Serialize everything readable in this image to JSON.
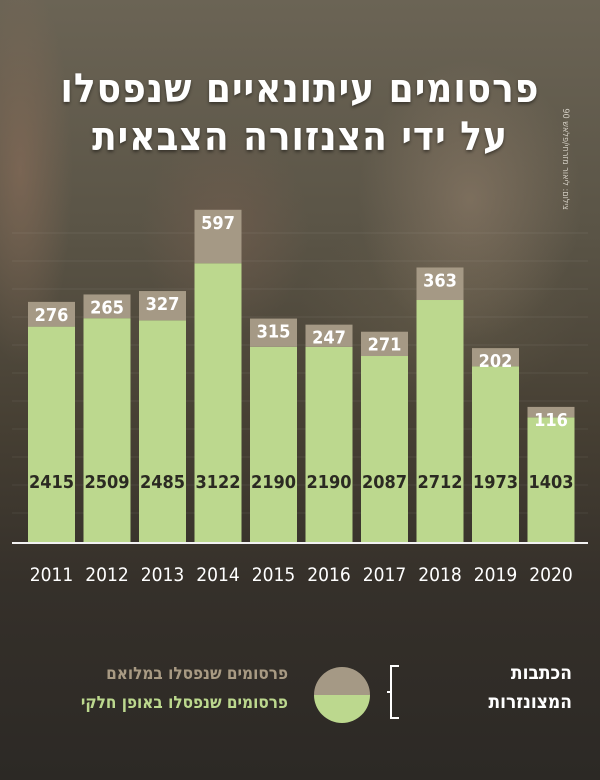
{
  "title_line1": "פרסומים עיתונאיים שנפסלו",
  "title_line2": "על ידי הצנזורה הצבאית",
  "credit": "צילום: ליאור מזרחי/פלאש 90",
  "legend": {
    "title_line1": "הכתבות",
    "title_line2": "המצונזרות",
    "full_label": "פרסומים שנפסלו במלואם",
    "partial_label": "פרסומים שנפסלו באופן חלקי",
    "full_color": "#a59985",
    "partial_color": "#bcd88e"
  },
  "chart_data": {
    "type": "bar",
    "stacked": true,
    "categories": [
      "2011",
      "2012",
      "2013",
      "2014",
      "2015",
      "2016",
      "2017",
      "2018",
      "2019",
      "2020"
    ],
    "series": [
      {
        "name": "פרסומים שנפסלו באופן חלקי",
        "values": [
          2415,
          2509,
          2485,
          3122,
          2190,
          2190,
          2087,
          2712,
          1973,
          1403
        ]
      },
      {
        "name": "פרסומים שנפסלו במלואם",
        "values": [
          276,
          265,
          327,
          597,
          315,
          247,
          271,
          363,
          202,
          116
        ]
      }
    ],
    "grid": true,
    "legend_position": "bottom"
  }
}
